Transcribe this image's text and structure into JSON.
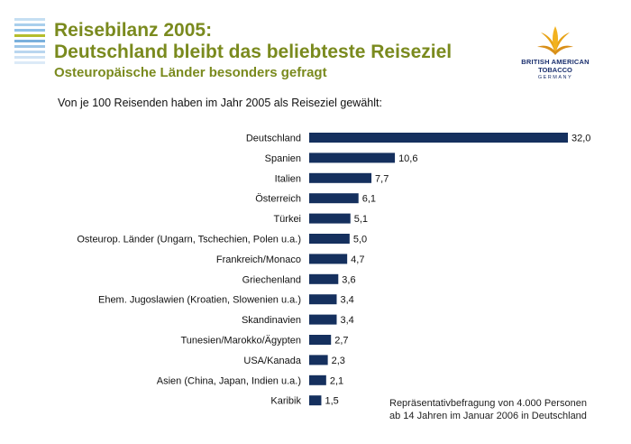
{
  "header": {
    "title_line1": "Reisebilanz 2005:",
    "title_line2": "Deutschland bleibt das beliebteste Reiseziel",
    "subtitle": "Osteuropäische Länder besonders gefragt"
  },
  "logo": {
    "line1": "BRITISH AMERICAN",
    "line2": "TOBACCO",
    "line3": "GERMANY"
  },
  "colors": {
    "bar": "#15305e",
    "title": "#7a8a1e",
    "stripes": [
      "#c5dff2",
      "#a9cfec",
      "#8fc0e6",
      "#b5bd2c",
      "#7ab0dc",
      "#9dc6e8",
      "#b9d6ef",
      "#cfe2f4",
      "#dceaf7"
    ]
  },
  "chart_subtitle": "Von je 100 Reisenden haben im Jahr 2005 als Reiseziel gewählt:",
  "note_line1": "Repräsentativbefragung von 4.000 Personen",
  "note_line2": "ab 14 Jahren im Januar 2006 in Deutschland",
  "chart_data": {
    "type": "bar",
    "orientation": "horizontal",
    "categories": [
      "Deutschland",
      "Spanien",
      "Italien",
      "Österreich",
      "Türkei",
      "Osteurop. Länder (Ungarn, Tschechien, Polen u.a.)",
      "Frankreich/Monaco",
      "Griechenland",
      "Ehem. Jugoslawien (Kroatien, Slowenien u.a.)",
      "Skandinavien",
      "Tunesien/Marokko/Ägypten",
      "USA/Kanada",
      "Asien (China, Japan, Indien u.a.)",
      "Karibik"
    ],
    "values": [
      32.0,
      10.6,
      7.7,
      6.1,
      5.1,
      5.0,
      4.7,
      3.6,
      3.4,
      3.4,
      2.7,
      2.3,
      2.1,
      1.5
    ],
    "value_labels": [
      "32,0",
      "10,6",
      "7,7",
      "6,1",
      "5,1",
      "5,0",
      "4,7",
      "3,6",
      "3,4",
      "3,4",
      "2,7",
      "2,3",
      "2,1",
      "1,5"
    ],
    "xlim": [
      0,
      32
    ],
    "grid": false
  }
}
